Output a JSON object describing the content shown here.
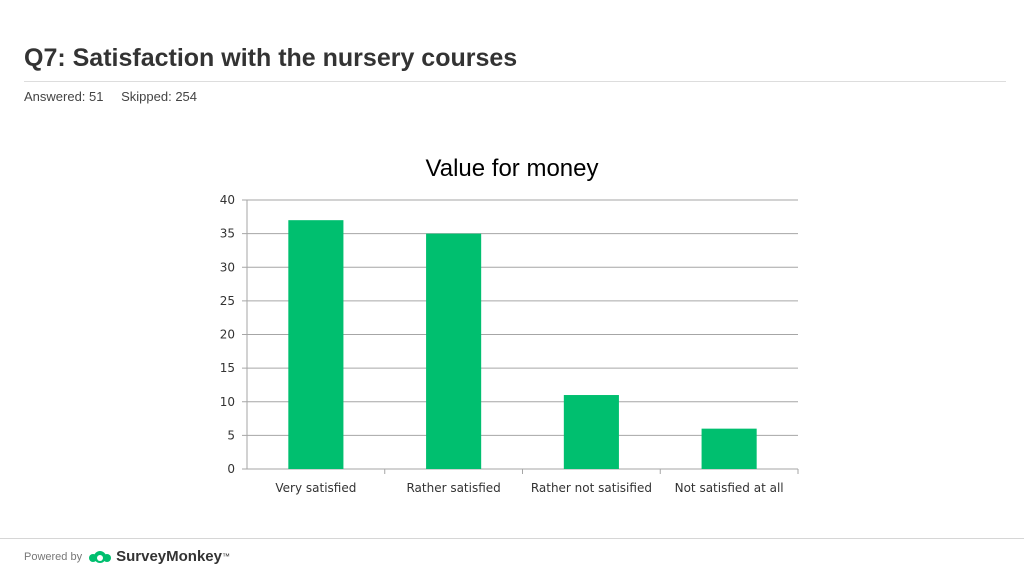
{
  "header": {
    "title": "Q7: Satisfaction with the nursery courses",
    "answered": "Answered: 51",
    "skipped": "Skipped: 254"
  },
  "footer": {
    "powered_by": "Powered by",
    "brand": "SurveyMonkey",
    "brand_mark": "™",
    "icon": "surveymonkey-logo-icon"
  },
  "colors": {
    "bar": "#00BF6F",
    "grid": "#a6a6a6"
  },
  "chart_data": {
    "type": "bar",
    "title": "Value for money",
    "categories": [
      "Very satisfied",
      "Rather satisfied",
      "Rather not satisified",
      "Not satisfied at all"
    ],
    "values": [
      37,
      35,
      11,
      6
    ],
    "ylim": [
      0,
      40
    ],
    "yticks": [
      0,
      5,
      10,
      15,
      20,
      25,
      30,
      35,
      40
    ],
    "grid": true,
    "xlabel": "",
    "ylabel": ""
  }
}
